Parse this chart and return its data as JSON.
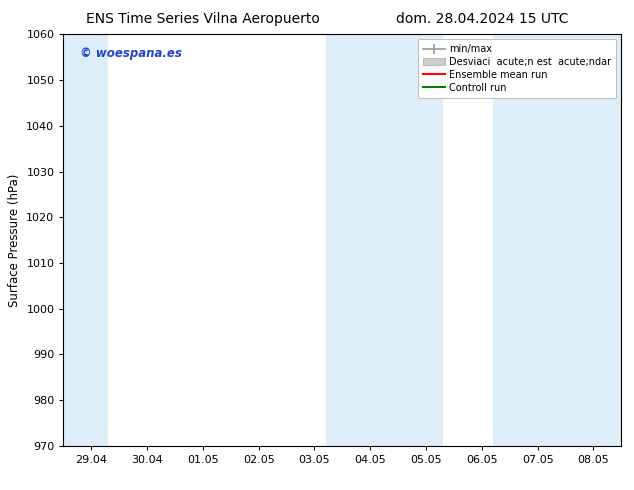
{
  "title_left": "ENS Time Series Vilna Aeropuerto",
  "title_right": "dom. 28.04.2024 15 UTC",
  "ylabel": "Surface Pressure (hPa)",
  "ylim": [
    970,
    1060
  ],
  "yticks": [
    970,
    980,
    990,
    1000,
    1010,
    1020,
    1030,
    1040,
    1050,
    1060
  ],
  "xtick_labels": [
    "29.04",
    "30.04",
    "01.05",
    "02.05",
    "03.05",
    "04.05",
    "05.05",
    "06.05",
    "07.05",
    "08.05"
  ],
  "xtick_positions": [
    0,
    1,
    2,
    3,
    4,
    5,
    6,
    7,
    8,
    9
  ],
  "shaded_bands": [
    {
      "xmin": -0.5,
      "xmax": 0.3,
      "color": "#ddeef8"
    },
    {
      "xmin": 4.2,
      "xmax": 6.3,
      "color": "#ddeef8"
    },
    {
      "xmin": 7.2,
      "xmax": 9.5,
      "color": "#ddeef8"
    }
  ],
  "watermark_text": "© woespana.es",
  "watermark_color": "#2244cc",
  "legend_label_minmax": "min/max",
  "legend_label_std": "Desviaci  acute;n est  acute;ndar",
  "legend_label_ens": "Ensemble mean run",
  "legend_label_ctrl": "Controll run",
  "bg_color": "#ffffff",
  "plot_bg_color": "#ffffff",
  "title_fontsize": 10,
  "tick_fontsize": 8,
  "ylabel_fontsize": 8.5
}
